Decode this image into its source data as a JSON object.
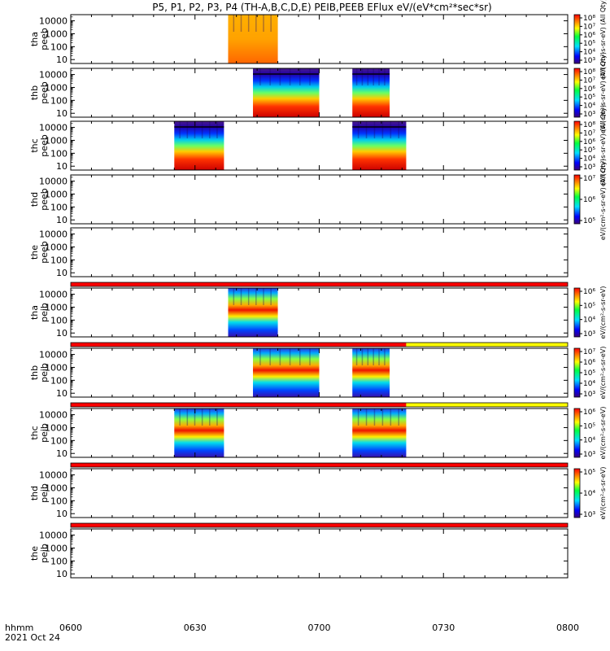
{
  "title": "P5, P1, P2, P3, P4 (TH-A,B,C,D,E) PEIB,PEEB EFlux eV/(eV*cm²*sec*sr)",
  "footer": {
    "time_label": "hhmm",
    "date_label": "2021 Oct 24"
  },
  "chart_data": {
    "type": "heatmap",
    "x_ticks": [
      "0600",
      "0630",
      "0700",
      "0730",
      "0800"
    ],
    "x_range": [
      "06:00",
      "08:00"
    ],
    "y_scale": "log",
    "y_range": [
      5,
      30000
    ],
    "y_ticks": [
      "10",
      "100",
      "1000",
      "10000"
    ],
    "panels": [
      {
        "label": [
          "tha",
          "peeb"
        ],
        "blocks": [
          [
            "06:38",
            "06:50"
          ]
        ],
        "style": "orange",
        "colorbar": {
          "ticks": [
            "10⁸",
            "10⁷",
            "10⁶",
            "10⁵",
            "10⁴",
            "10³"
          ],
          "label": "eV/(cm²-s-sr-eV) (All Qty)"
        }
      },
      {
        "label": [
          "thb",
          "peeb"
        ],
        "blocks": [
          [
            "06:44",
            "07:00"
          ],
          [
            "07:08",
            "07:17"
          ]
        ],
        "style": "rainbow",
        "colorbar": {
          "ticks": [
            "10⁸",
            "10⁷",
            "10⁶",
            "10⁵",
            "10⁴",
            "10³"
          ],
          "label": "eV/(cm²-s-sr-eV) (All Qty)"
        }
      },
      {
        "label": [
          "thc",
          "peeb"
        ],
        "blocks": [
          [
            "06:25",
            "06:37"
          ],
          [
            "07:08",
            "07:21"
          ]
        ],
        "style": "rainbow",
        "colorbar": {
          "ticks": [
            "10⁸",
            "10⁷",
            "10⁶",
            "10⁵",
            "10⁴",
            "10³"
          ],
          "label": "eV/(cm²-s-sr-eV) (All Qty)"
        }
      },
      {
        "label": [
          "thd",
          "peeb"
        ],
        "blocks": [],
        "style": "none",
        "colorbar": {
          "ticks": [
            "10⁷",
            "10⁶",
            "10⁵"
          ],
          "label": "eV/(cm²-s-sr-eV) (All Qty)"
        }
      },
      {
        "label": [
          "the",
          "peeb"
        ],
        "blocks": [],
        "style": "none",
        "colorbar": null
      },
      {
        "label": [
          "tha",
          "peib"
        ],
        "blocks": [
          [
            "06:38",
            "06:50"
          ]
        ],
        "style": "ion",
        "colorbar": {
          "ticks": [
            "10⁶",
            "10⁵",
            "10⁴",
            "10³"
          ],
          "label": "eV/(cm²-s-sr-eV)"
        }
      },
      {
        "label": [
          "thb",
          "peib"
        ],
        "blocks": [
          [
            "06:44",
            "07:00"
          ],
          [
            "07:08",
            "07:17"
          ]
        ],
        "style": "ion",
        "colorbar": {
          "ticks": [
            "10⁷",
            "10⁶",
            "10⁵",
            "10⁴",
            "10³"
          ],
          "label": "eV/(cm²-s-sr-eV)"
        }
      },
      {
        "label": [
          "thc",
          "peib"
        ],
        "blocks": [
          [
            "06:25",
            "06:37"
          ],
          [
            "07:08",
            "07:21"
          ]
        ],
        "style": "ion",
        "colorbar": {
          "ticks": [
            "10⁶",
            "10⁵",
            "10⁴",
            "10³"
          ],
          "label": "eV/(cm²-s-sr-eV)"
        }
      },
      {
        "label": [
          "thd",
          "peib"
        ],
        "blocks": [],
        "style": "none",
        "colorbar": {
          "ticks": [
            "10⁵",
            "10⁴",
            "10³"
          ],
          "label": "eV/(cm²-s-sr-eV)"
        }
      },
      {
        "label": [
          "the",
          "peib"
        ],
        "blocks": [],
        "style": "none",
        "colorbar": null
      }
    ],
    "mode_bars": [
      {
        "after_panel": 4,
        "segments": [
          {
            "from": "06:00",
            "to": "08:00",
            "color": "#ff0000"
          }
        ]
      },
      {
        "after_panel": 5,
        "segments": [
          {
            "from": "06:00",
            "to": "07:21",
            "color": "#ff0000"
          },
          {
            "from": "07:21",
            "to": "08:00",
            "color": "#ffff00"
          }
        ]
      },
      {
        "after_panel": 6,
        "segments": [
          {
            "from": "06:00",
            "to": "07:21",
            "color": "#ff0000"
          },
          {
            "from": "07:21",
            "to": "08:00",
            "color": "#ffff00"
          }
        ]
      },
      {
        "after_panel": 7,
        "segments": [
          {
            "from": "06:00",
            "to": "08:00",
            "color": "#ff0000"
          }
        ]
      },
      {
        "after_panel": 8,
        "segments": [
          {
            "from": "06:00",
            "to": "08:00",
            "color": "#ff0000"
          }
        ]
      }
    ]
  }
}
